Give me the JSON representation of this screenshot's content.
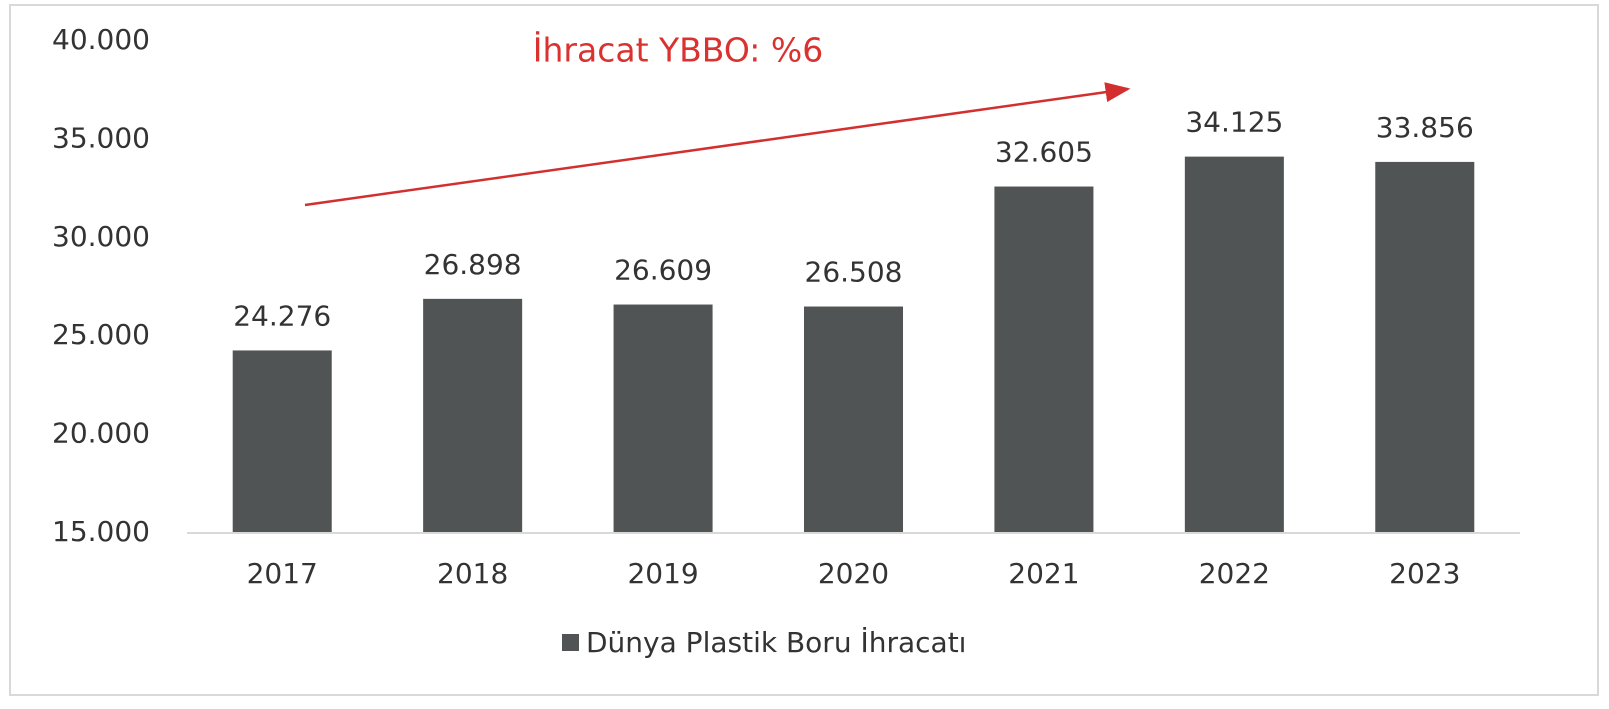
{
  "chart_data": {
    "type": "bar",
    "annotation": "İhracat YBBO: %6",
    "categories": [
      "2017",
      "2018",
      "2019",
      "2020",
      "2021",
      "2022",
      "2023"
    ],
    "series": [
      {
        "name": "Dünya Plastik Boru İhracatı",
        "color": "#515454",
        "values": [
          24276,
          26898,
          26609,
          26508,
          32605,
          34125,
          33856
        ],
        "value_labels": [
          "24.276",
          "26.898",
          "26.609",
          "26.508",
          "32.605",
          "34.125",
          "33.856"
        ]
      }
    ],
    "ylim": [
      15000,
      40000
    ],
    "yticks": [
      {
        "value": 15000,
        "label": "15.000"
      },
      {
        "value": 20000,
        "label": "20.000"
      },
      {
        "value": 25000,
        "label": "25.000"
      },
      {
        "value": 30000,
        "label": "30.000"
      },
      {
        "value": 35000,
        "label": "35.000"
      },
      {
        "value": 40000,
        "label": "40.000"
      }
    ],
    "grid": false,
    "legend": "bottom"
  }
}
